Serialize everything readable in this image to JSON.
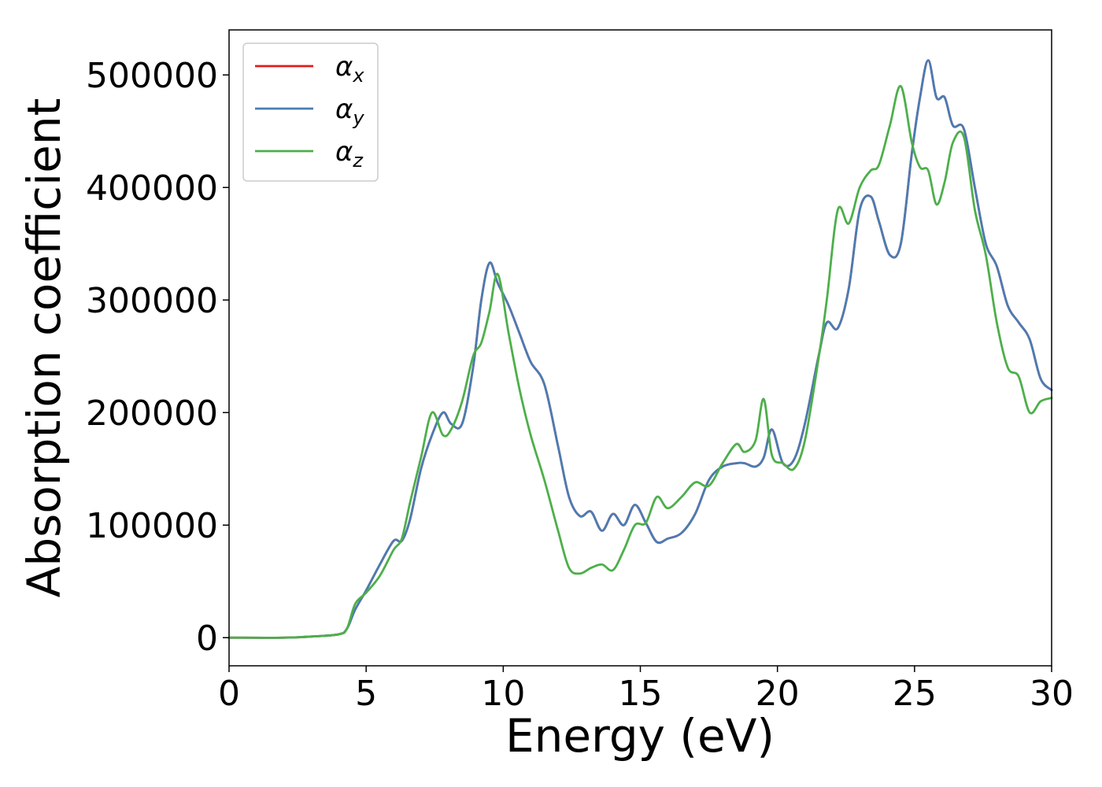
{
  "chart_data": {
    "type": "line",
    "title": "",
    "xlabel": "Energy (eV)",
    "ylabel": "Absorption coefficient",
    "xlim": [
      0,
      30
    ],
    "ylim": [
      -25000,
      540000
    ],
    "xticks": [
      0,
      5,
      10,
      15,
      20,
      25,
      30
    ],
    "xtick_labels": [
      "0",
      "5",
      "10",
      "15",
      "20",
      "25",
      "30"
    ],
    "yticks": [
      0,
      100000,
      200000,
      300000,
      400000,
      500000
    ],
    "ytick_labels": [
      "0",
      "100000",
      "200000",
      "300000",
      "400000",
      "500000"
    ],
    "grid": false,
    "legend_position": "top-left",
    "series": [
      {
        "name": "α_x",
        "legend_symbol": "α",
        "legend_subscript": "x",
        "color": "#e41a1c",
        "x": [
          0,
          2,
          3,
          4,
          4.3,
          4.6,
          5,
          5.5,
          6,
          6.3,
          6.6,
          7,
          7.4,
          7.8,
          8.1,
          8.5,
          8.9,
          9.2,
          9.5,
          9.8,
          10.2,
          10.6,
          11,
          11.5,
          12,
          12.4,
          12.8,
          13.2,
          13.6,
          14,
          14.4,
          14.8,
          15.2,
          15.6,
          16,
          16.5,
          17,
          17.5,
          18,
          18.5,
          18.8,
          19.2,
          19.5,
          19.8,
          20.2,
          20.6,
          21,
          21.5,
          21.8,
          22.2,
          22.6,
          23,
          23.4,
          23.7,
          24.1,
          24.5,
          24.9,
          25.2,
          25.5,
          25.8,
          26.1,
          26.4,
          26.8,
          27.2,
          27.6,
          28,
          28.4,
          28.8,
          29.2,
          29.6,
          30
        ],
        "y": [
          0,
          0,
          1000,
          3000,
          8000,
          25000,
          42000,
          65000,
          86000,
          86000,
          105000,
          150000,
          180000,
          200000,
          190000,
          190000,
          240000,
          300000,
          333000,
          315000,
          295000,
          270000,
          245000,
          225000,
          170000,
          125000,
          108000,
          112000,
          95000,
          110000,
          100000,
          118000,
          102000,
          85000,
          88000,
          93000,
          110000,
          140000,
          152000,
          155000,
          155000,
          152000,
          160000,
          185000,
          155000,
          158000,
          190000,
          250000,
          280000,
          275000,
          310000,
          380000,
          392000,
          370000,
          340000,
          350000,
          430000,
          480000,
          513000,
          480000,
          480000,
          455000,
          452000,
          400000,
          350000,
          330000,
          295000,
          280000,
          265000,
          230000,
          220000
        ]
      },
      {
        "name": "α_y",
        "legend_symbol": "α",
        "legend_subscript": "y",
        "color": "#4a7cb3",
        "x": [
          0,
          2,
          3,
          4,
          4.3,
          4.6,
          5,
          5.5,
          6,
          6.3,
          6.6,
          7,
          7.4,
          7.8,
          8.1,
          8.5,
          8.9,
          9.2,
          9.5,
          9.8,
          10.2,
          10.6,
          11,
          11.5,
          12,
          12.4,
          12.8,
          13.2,
          13.6,
          14,
          14.4,
          14.8,
          15.2,
          15.6,
          16,
          16.5,
          17,
          17.5,
          18,
          18.5,
          18.8,
          19.2,
          19.5,
          19.8,
          20.2,
          20.6,
          21,
          21.5,
          21.8,
          22.2,
          22.6,
          23,
          23.4,
          23.7,
          24.1,
          24.5,
          24.9,
          25.2,
          25.5,
          25.8,
          26.1,
          26.4,
          26.8,
          27.2,
          27.6,
          28,
          28.4,
          28.8,
          29.2,
          29.6,
          30
        ],
        "y": [
          0,
          0,
          1000,
          3000,
          8000,
          25000,
          42000,
          65000,
          86000,
          86000,
          105000,
          150000,
          180000,
          200000,
          190000,
          190000,
          240000,
          300000,
          333000,
          315000,
          295000,
          270000,
          245000,
          225000,
          170000,
          125000,
          108000,
          112000,
          95000,
          110000,
          100000,
          118000,
          102000,
          85000,
          88000,
          93000,
          110000,
          140000,
          152000,
          155000,
          155000,
          152000,
          160000,
          185000,
          155000,
          158000,
          190000,
          250000,
          280000,
          275000,
          310000,
          380000,
          392000,
          370000,
          340000,
          350000,
          430000,
          480000,
          513000,
          480000,
          480000,
          455000,
          452000,
          400000,
          350000,
          330000,
          295000,
          280000,
          265000,
          230000,
          220000
        ]
      },
      {
        "name": "α_z",
        "legend_symbol": "α",
        "legend_subscript": "z",
        "color": "#4daf4a",
        "x": [
          0,
          2,
          3,
          4,
          4.3,
          4.6,
          5,
          5.5,
          6,
          6.3,
          6.6,
          7,
          7.4,
          7.8,
          8.1,
          8.5,
          8.9,
          9.2,
          9.5,
          9.8,
          10.2,
          10.6,
          11,
          11.5,
          12,
          12.4,
          12.8,
          13.2,
          13.6,
          14,
          14.4,
          14.8,
          15.2,
          15.6,
          16,
          16.5,
          17,
          17.5,
          18,
          18.5,
          18.8,
          19.2,
          19.5,
          19.8,
          20.2,
          20.6,
          21,
          21.5,
          21.8,
          22.2,
          22.6,
          23,
          23.4,
          23.7,
          24.1,
          24.5,
          24.9,
          25.2,
          25.5,
          25.8,
          26.1,
          26.4,
          26.8,
          27.2,
          27.6,
          28,
          28.4,
          28.8,
          29.2,
          29.6,
          30
        ],
        "y": [
          0,
          0,
          1000,
          3000,
          8000,
          30000,
          40000,
          55000,
          78000,
          88000,
          120000,
          160000,
          200000,
          180000,
          185000,
          210000,
          250000,
          262000,
          290000,
          323000,
          270000,
          220000,
          180000,
          140000,
          95000,
          62000,
          57000,
          62000,
          65000,
          60000,
          78000,
          100000,
          102000,
          125000,
          115000,
          125000,
          138000,
          135000,
          155000,
          172000,
          165000,
          175000,
          212000,
          162000,
          155000,
          150000,
          175000,
          248000,
          300000,
          380000,
          368000,
          400000,
          415000,
          420000,
          455000,
          490000,
          440000,
          418000,
          415000,
          385000,
          405000,
          440000,
          445000,
          380000,
          340000,
          280000,
          240000,
          232000,
          200000,
          210000,
          213000
        ]
      }
    ]
  }
}
